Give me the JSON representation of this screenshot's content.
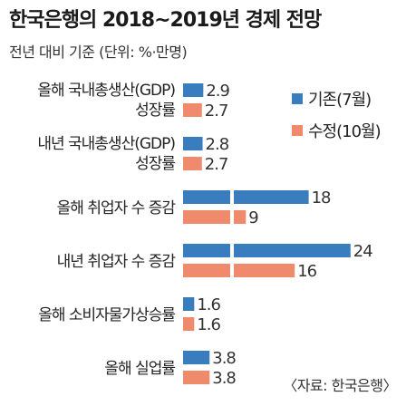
{
  "title": "한국은행의 2018~2019년 경제 전망",
  "subtitle": "전년 대비 기준 (단위: %·만명)",
  "source": "〈자료: 한국은행〉",
  "colors": {
    "orig": "#3a7dbf",
    "rev": "#f08a6c"
  },
  "chart_data": {
    "type": "bar",
    "orientation": "horizontal",
    "categories": [
      "올해 국내총생산(GDP) 성장률",
      "내년 국내총생산(GDP) 성장률",
      "올해 취업자 수 증감",
      "내년 취업자 수 증감",
      "올해 소비자물가상승률",
      "올해 실업률"
    ],
    "category_lines": [
      [
        "올해 국내총생산(GDP)",
        "성장률"
      ],
      [
        "내년 국내총생산(GDP)",
        "성장률"
      ],
      [
        "올해 취업자 수 증감"
      ],
      [
        "내년 취업자 수 증감"
      ],
      [
        "올해 소비자물가상승률"
      ],
      [
        "올해 실업률"
      ]
    ],
    "series": [
      {
        "name": "기존(7월)",
        "values": [
          "2.9",
          "2.8",
          "18",
          "24",
          "1.6",
          "3.8"
        ]
      },
      {
        "name": "수정(10월)",
        "values": [
          "2.7",
          "2.7",
          "9",
          "16",
          "1.6",
          "3.8"
        ]
      }
    ],
    "legend_position": "top-right"
  }
}
